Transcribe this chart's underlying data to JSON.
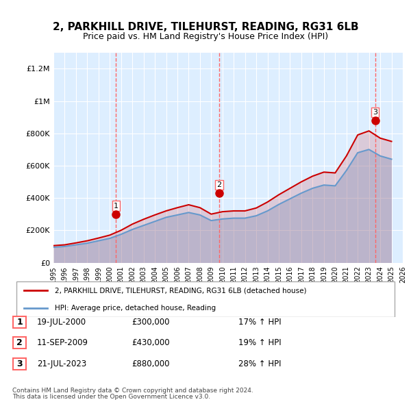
{
  "title": "2, PARKHILL DRIVE, TILEHURST, READING, RG31 6LB",
  "subtitle": "Price paid vs. HM Land Registry's House Price Index (HPI)",
  "legend_line1": "2, PARKHILL DRIVE, TILEHURST, READING, RG31 6LB (detached house)",
  "legend_line2": "HPI: Average price, detached house, Reading",
  "footnote1": "Contains HM Land Registry data © Crown copyright and database right 2024.",
  "footnote2": "This data is licensed under the Open Government Licence v3.0.",
  "transactions": [
    {
      "num": 1,
      "date": "19-JUL-2000",
      "price": "£300,000",
      "hpi": "17% ↑ HPI",
      "year": 2000.55
    },
    {
      "num": 2,
      "date": "11-SEP-2009",
      "price": "£430,000",
      "hpi": "19% ↑ HPI",
      "year": 2009.7
    },
    {
      "num": 3,
      "date": "21-JUL-2023",
      "price": "£880,000",
      "hpi": "28% ↑ HPI",
      "year": 2023.55
    }
  ],
  "sale_prices": [
    300000,
    430000,
    880000
  ],
  "hpi_color": "#6699cc",
  "price_color": "#cc0000",
  "vline_color": "#ff6666",
  "bg_color": "#ddeeff",
  "plot_bg": "#ffffff",
  "ylim": [
    0,
    1300000
  ],
  "xlim_start": 1995,
  "xlim_end": 2026,
  "yticks": [
    0,
    200000,
    400000,
    600000,
    800000,
    1000000,
    1200000
  ],
  "ytick_labels": [
    "£0",
    "£200K",
    "£400K",
    "£600K",
    "£800K",
    "£1M",
    "£1.2M"
  ],
  "xticks": [
    1995,
    1996,
    1997,
    1998,
    1999,
    2000,
    2001,
    2002,
    2003,
    2004,
    2005,
    2006,
    2007,
    2008,
    2009,
    2010,
    2011,
    2012,
    2013,
    2014,
    2015,
    2016,
    2017,
    2018,
    2019,
    2020,
    2021,
    2022,
    2023,
    2024,
    2025,
    2026
  ],
  "hpi_years": [
    1995,
    1996,
    1997,
    1998,
    1999,
    2000,
    2001,
    2002,
    2003,
    2004,
    2005,
    2006,
    2007,
    2008,
    2009,
    2010,
    2011,
    2012,
    2013,
    2014,
    2015,
    2016,
    2017,
    2018,
    2019,
    2020,
    2021,
    2022,
    2023,
    2024,
    2025
  ],
  "hpi_values": [
    95000,
    100000,
    110000,
    120000,
    135000,
    150000,
    175000,
    205000,
    230000,
    255000,
    280000,
    295000,
    310000,
    295000,
    260000,
    270000,
    275000,
    275000,
    290000,
    320000,
    360000,
    395000,
    430000,
    460000,
    480000,
    475000,
    570000,
    680000,
    700000,
    660000,
    640000
  ],
  "price_years": [
    1995,
    1996,
    1997,
    1998,
    1999,
    2000,
    2001,
    2002,
    2003,
    2004,
    2005,
    2006,
    2007,
    2008,
    2009,
    2010,
    2011,
    2012,
    2013,
    2014,
    2015,
    2016,
    2017,
    2018,
    2019,
    2020,
    2021,
    2022,
    2023,
    2024,
    2025
  ],
  "price_values": [
    105000,
    110000,
    122000,
    135000,
    152000,
    170000,
    200000,
    238000,
    268000,
    295000,
    320000,
    340000,
    358000,
    340000,
    300000,
    315000,
    320000,
    320000,
    338000,
    375000,
    420000,
    460000,
    500000,
    535000,
    560000,
    555000,
    660000,
    790000,
    815000,
    770000,
    750000
  ]
}
